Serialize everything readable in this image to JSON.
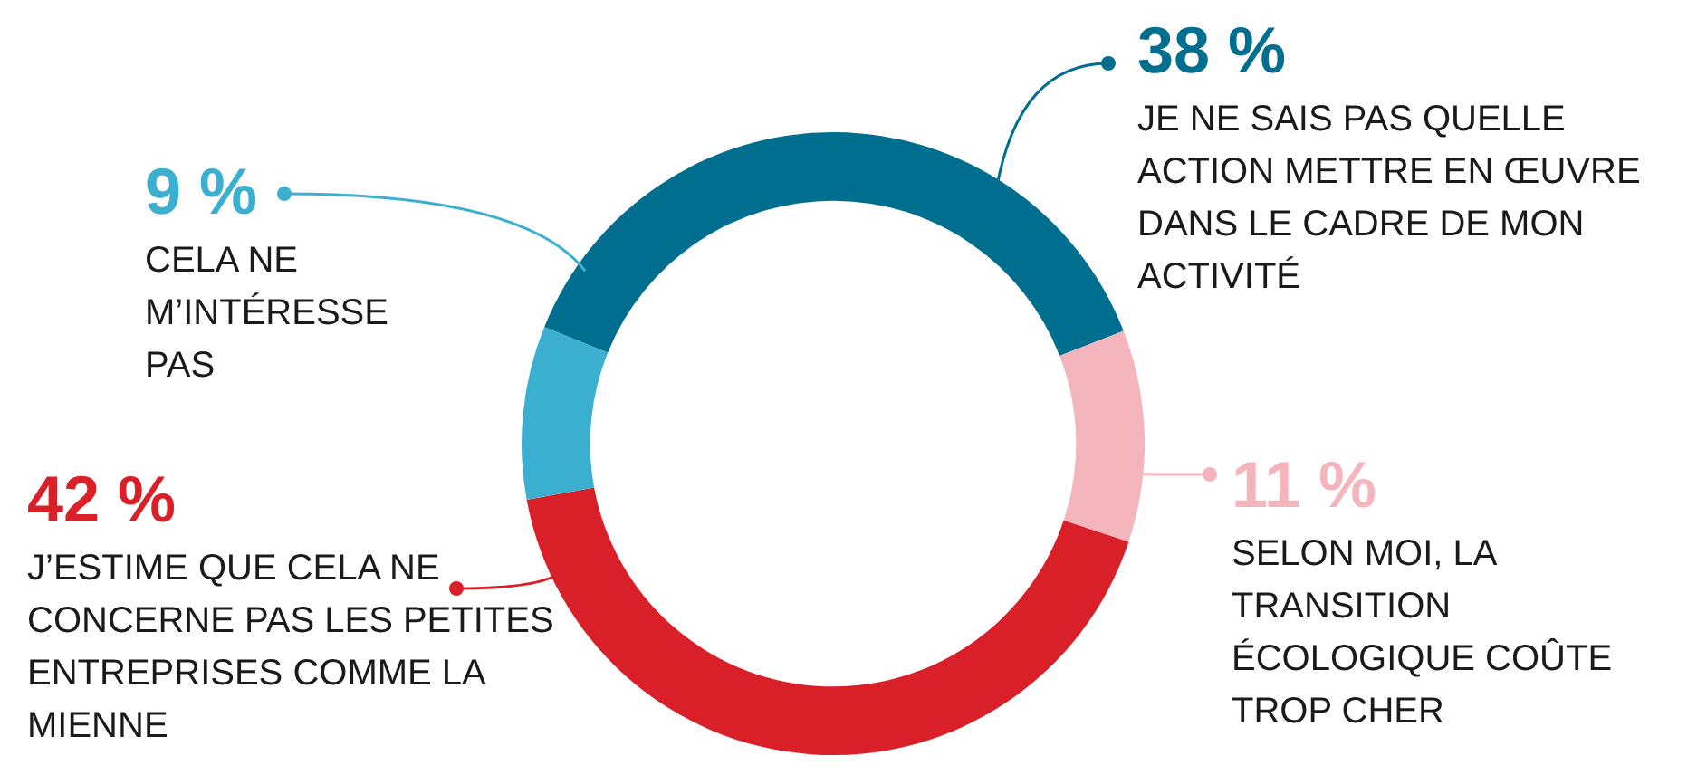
{
  "chart_data": {
    "type": "donut",
    "categories": [
      "JE NE SAIS PAS QUELLE ACTION METTRE EN ŒUVRE DANS LE CADRE DE MON ACTIVITÉ",
      "SELON MOI, LA TRANSITION ÉCOLOGIQUE COÛTE TROP CHER",
      "J’ESTIME QUE CELA NE CONCERNE PAS LES PETITES ENTREPRISES COMME LA MIENNE",
      "CELA NE M’INTÉRESSE PAS"
    ],
    "values": [
      38,
      11,
      42,
      9
    ],
    "colors": [
      "#006e8f",
      "#f5b5bc",
      "#d92028",
      "#3bafd0"
    ],
    "value_labels": [
      "38 %",
      "11 %",
      "42 %",
      "9 %"
    ],
    "legend": "top"
  }
}
